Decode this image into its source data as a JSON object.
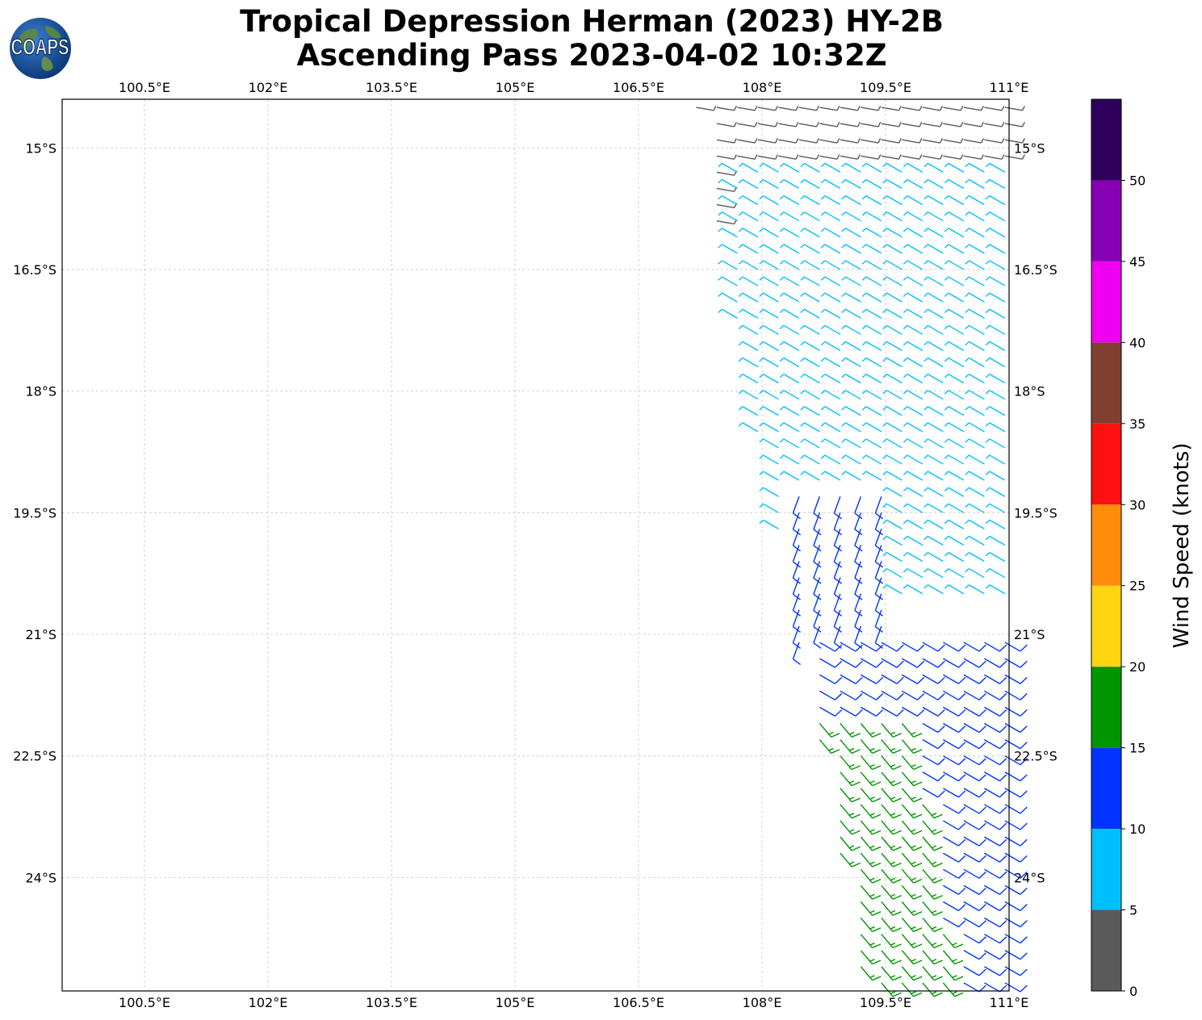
{
  "title": {
    "line1": "Tropical Depression Herman (2023) HY-2B",
    "line2": "Ascending Pass 2023-04-02 10:32Z"
  },
  "logo": {
    "text": "COAPS",
    "icon": "earth-globe-icon"
  },
  "map": {
    "lon_range": [
      99.5,
      111.0
    ],
    "lat_range": [
      -25.4,
      -14.4
    ],
    "lon_ticks": [
      {
        "value": 100.5,
        "label": "100.5°E"
      },
      {
        "value": 102.0,
        "label": "102°E"
      },
      {
        "value": 103.5,
        "label": "103.5°E"
      },
      {
        "value": 105.0,
        "label": "105°E"
      },
      {
        "value": 106.5,
        "label": "106.5°E"
      },
      {
        "value": 108.0,
        "label": "108°E"
      },
      {
        "value": 109.5,
        "label": "109.5°E"
      },
      {
        "value": 111.0,
        "label": "111°E"
      }
    ],
    "lat_ticks": [
      {
        "value": -15.0,
        "label": "15°S"
      },
      {
        "value": -16.5,
        "label": "16.5°S"
      },
      {
        "value": -18.0,
        "label": "18°S"
      },
      {
        "value": -19.5,
        "label": "19.5°S"
      },
      {
        "value": -21.0,
        "label": "21°S"
      },
      {
        "value": -22.5,
        "label": "22.5°S"
      },
      {
        "value": -24.0,
        "label": "24°S"
      }
    ],
    "gridlines": true,
    "gridline_color": "#c8c8c8"
  },
  "colorbar": {
    "label": "Wind Speed (knots)",
    "ticks": [
      "0",
      "5",
      "10",
      "15",
      "20",
      "25",
      "30",
      "35",
      "40",
      "45",
      "50"
    ],
    "bins": [
      {
        "min": 0,
        "max": 5,
        "color": "#5a5a5a"
      },
      {
        "min": 5,
        "max": 10,
        "color": "#00bfff"
      },
      {
        "min": 10,
        "max": 15,
        "color": "#0033ff"
      },
      {
        "min": 15,
        "max": 20,
        "color": "#009600"
      },
      {
        "min": 20,
        "max": 25,
        "color": "#ffd410"
      },
      {
        "min": 25,
        "max": 30,
        "color": "#ff8c0a"
      },
      {
        "min": 30,
        "max": 35,
        "color": "#ff1010"
      },
      {
        "min": 35,
        "max": 40,
        "color": "#804030"
      },
      {
        "min": 40,
        "max": 45,
        "color": "#f000f0"
      },
      {
        "min": 45,
        "max": 50,
        "color": "#8800b4"
      },
      {
        "min": 50,
        "max": 55,
        "color": "#2e005c"
      }
    ]
  },
  "wind_regions": [
    {
      "name": "calm",
      "speed_kt": 3,
      "lat_range": [
        -17.0,
        -14.4
      ],
      "lon_range": [
        107.2,
        111.0
      ],
      "direction_from_deg": 100
    },
    {
      "name": "light-north",
      "speed_kt": 7,
      "lat_range": [
        -20.6,
        -15.2
      ],
      "lon_range": [
        107.5,
        111.0
      ],
      "direction_from_deg": 300
    },
    {
      "name": "moderate-west",
      "speed_kt": 12,
      "lat_range": [
        -21.9,
        -19.2
      ],
      "lon_range": [
        108.3,
        109.6
      ],
      "direction_from_deg": 200
    },
    {
      "name": "moderate-south",
      "speed_kt": 12,
      "lat_range": [
        -25.4,
        -21.0
      ],
      "lon_range": [
        108.7,
        111.0
      ],
      "direction_from_deg": 120
    },
    {
      "name": "fresh-south",
      "speed_kt": 17,
      "lat_range": [
        -25.4,
        -21.9
      ],
      "lon_range": [
        108.7,
        110.8
      ],
      "direction_from_deg": 140
    }
  ]
}
